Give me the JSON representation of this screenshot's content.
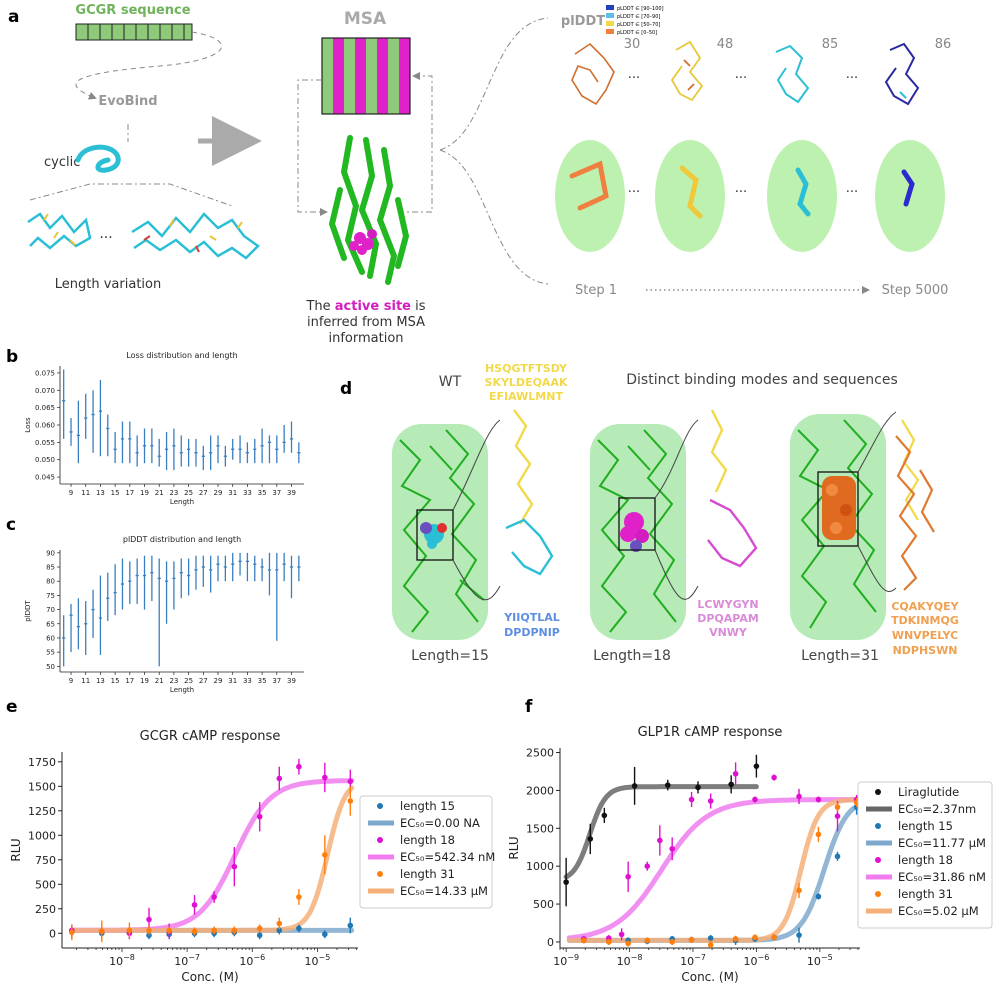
{
  "colors": {
    "gcgr_green": "#7fbf66",
    "msa_magenta": "#e020c8",
    "protein_green": "#2ecc2e",
    "cyan": "#2bbfd6",
    "yellow": "#f2d94a",
    "orange": "#f0803c",
    "pink": "#e62bd6",
    "blue_scatter": "#3a7fbf",
    "gray": "#9a9a9a"
  },
  "panel_a": {
    "label": "a",
    "gcgr_sequence": "GCGR sequence",
    "evobind": "EvoBind",
    "cyclic": "cyclic",
    "length_variation": "Length variation",
    "ellipsis": "...",
    "msa_title": "MSA",
    "active_site_pre": "The ",
    "active_site_highlight": "active site",
    "active_site_post": " is",
    "inferred_line1": "inferred from MSA",
    "inferred_line2": "information",
    "plddt_title": "plDDT",
    "plddt_legend": [
      "pLDDT ∈ [90–100]",
      "pLDDT ∈ [70–90]",
      "pLDDT ∈ [50–70]",
      "pLDDT ∈ [0–50]"
    ],
    "plddt_legend_colors": [
      "#1f3fbf",
      "#5bc0e8",
      "#f2d94a",
      "#f0803c"
    ],
    "plddt_values": [
      "30",
      "48",
      "85",
      "86"
    ],
    "step_start": "Step 1",
    "step_end": "Step 5000"
  },
  "panel_d": {
    "label": "d",
    "wt": "WT",
    "title": "Distinct binding modes and sequences",
    "wt_seq": [
      "HSQGTFTSDY",
      "SKYLDEQAAK",
      "EFIAWLMNT"
    ],
    "seq15": [
      "YIIQTLAL",
      "DPDPNIP"
    ],
    "seq18": [
      "LCWYGYN",
      "DPQAPAM",
      "VNWY"
    ],
    "seq31": [
      "CQAKYQEY",
      "TDKINMQG",
      "WNVPELYC",
      "NDPHSWN"
    ],
    "len15": "Length=15",
    "len18": "Length=18",
    "len31": "Length=31"
  },
  "chart_data": [
    {
      "panel": "b",
      "type": "errorbar",
      "title": "Loss distribution and length",
      "xlabel": "Length",
      "ylabel": "Loss",
      "ylim": [
        0.043,
        0.077
      ],
      "xlim": [
        7.5,
        40.7
      ],
      "yticks": [
        "0.045",
        "0.050",
        "0.055",
        "0.060",
        "0.065",
        "0.070",
        "0.075"
      ],
      "xticks": [
        "9",
        "11",
        "13",
        "15",
        "17",
        "19",
        "21",
        "23",
        "25",
        "27",
        "29",
        "31",
        "33",
        "35",
        "37",
        "39"
      ],
      "x": [
        8,
        9,
        10,
        11,
        12,
        13,
        14,
        15,
        16,
        17,
        18,
        19,
        20,
        21,
        22,
        23,
        24,
        25,
        26,
        27,
        28,
        29,
        30,
        31,
        32,
        33,
        34,
        35,
        36,
        37,
        38,
        39,
        40
      ],
      "mean": [
        0.067,
        0.058,
        0.057,
        0.062,
        0.063,
        0.064,
        0.059,
        0.053,
        0.056,
        0.056,
        0.052,
        0.054,
        0.054,
        0.051,
        0.053,
        0.054,
        0.052,
        0.053,
        0.052,
        0.051,
        0.052,
        0.054,
        0.051,
        0.053,
        0.053,
        0.052,
        0.053,
        0.054,
        0.055,
        0.053,
        0.055,
        0.056,
        0.052
      ],
      "low": [
        0.056,
        0.054,
        0.049,
        0.056,
        0.052,
        0.051,
        0.051,
        0.049,
        0.049,
        0.049,
        0.048,
        0.049,
        0.049,
        0.048,
        0.047,
        0.047,
        0.048,
        0.048,
        0.048,
        0.047,
        0.047,
        0.049,
        0.048,
        0.05,
        0.049,
        0.049,
        0.049,
        0.049,
        0.049,
        0.049,
        0.052,
        0.052,
        0.049
      ],
      "high": [
        0.076,
        0.062,
        0.067,
        0.069,
        0.07,
        0.073,
        0.063,
        0.058,
        0.061,
        0.061,
        0.057,
        0.059,
        0.059,
        0.056,
        0.058,
        0.059,
        0.057,
        0.056,
        0.056,
        0.054,
        0.057,
        0.057,
        0.054,
        0.056,
        0.057,
        0.055,
        0.056,
        0.059,
        0.057,
        0.057,
        0.06,
        0.061,
        0.055
      ]
    },
    {
      "panel": "c",
      "type": "errorbar",
      "title": "plDDT distribution and length",
      "xlabel": "Length",
      "ylabel": "plDDT",
      "ylim": [
        48,
        91
      ],
      "xlim": [
        7.5,
        40.7
      ],
      "yticks": [
        "50",
        "55",
        "60",
        "65",
        "70",
        "75",
        "80",
        "85",
        "90"
      ],
      "xticks": [
        "9",
        "11",
        "13",
        "15",
        "17",
        "19",
        "21",
        "23",
        "25",
        "27",
        "29",
        "31",
        "33",
        "35",
        "37",
        "39"
      ],
      "x": [
        8,
        9,
        10,
        11,
        12,
        13,
        14,
        15,
        16,
        17,
        18,
        19,
        20,
        21,
        22,
        23,
        24,
        25,
        26,
        27,
        28,
        29,
        30,
        31,
        32,
        33,
        34,
        35,
        36,
        37,
        38,
        39,
        40
      ],
      "mean": [
        60,
        68,
        64,
        65,
        70,
        67,
        74,
        76,
        79,
        80,
        82,
        82,
        83,
        81,
        80,
        81,
        83,
        82,
        84,
        85,
        84,
        86,
        85,
        86,
        87,
        87,
        86,
        85,
        84,
        84,
        86,
        85,
        85
      ],
      "low": [
        50,
        55,
        56,
        54,
        60,
        54,
        66,
        68,
        70,
        72,
        72,
        70,
        73,
        50,
        65,
        70,
        74,
        75,
        77,
        78,
        76,
        80,
        80,
        80,
        82,
        80,
        80,
        80,
        75,
        59,
        80,
        74,
        80
      ],
      "high": [
        68,
        72,
        74,
        73,
        77,
        82,
        83,
        86,
        88,
        87,
        88,
        89,
        89,
        88,
        87,
        87,
        88,
        88,
        89,
        89,
        89,
        89,
        89,
        90,
        90,
        90,
        89,
        88,
        90,
        90,
        90,
        89,
        89
      ]
    },
    {
      "panel": "e",
      "type": "dose_response",
      "title": "GCGR cAMP response",
      "xlabel": "Conc. (M)",
      "ylabel": "RLU",
      "xscale": "log",
      "xlim": [
        1.2e-09,
        4.2e-05
      ],
      "ylim": [
        -150,
        1850
      ],
      "yticks": [
        0,
        250,
        500,
        750,
        1000,
        1250,
        1500,
        1750
      ],
      "xticks_exp": [
        -8,
        -7,
        -6,
        -5
      ],
      "series": [
        {
          "name": "length 15",
          "fit_label": "EC₅₀=0.00 NA",
          "color": "#1f77b4",
          "fit_color": "#7fa9cc",
          "fit": {
            "bottom": 30,
            "top": 30,
            "ec50": 1e-06,
            "hill": 1
          },
          "x": [
            1.7e-09,
            4.9e-09,
            1.3e-08,
            2.6e-08,
            5.3e-08,
            1.3e-07,
            2.6e-07,
            5.3e-07,
            1.3e-06,
            2.6e-06,
            5.2e-06,
            1.3e-05,
            3.2e-05
          ],
          "y": [
            20,
            0,
            10,
            -20,
            -10,
            0,
            0,
            10,
            -20,
            30,
            50,
            -10,
            80
          ],
          "err": [
            70,
            60,
            50,
            40,
            40,
            40,
            40,
            40,
            40,
            40,
            40,
            40,
            80
          ]
        },
        {
          "name": "length 18",
          "fit_label": "EC₅₀=542.34 nM",
          "color": "#e010d0",
          "fit_color": "#f07cf0",
          "fit": {
            "bottom": 30,
            "top": 1560,
            "ec50": 5.4234e-07,
            "hill": 1.6
          },
          "x": [
            1.7e-09,
            4.9e-09,
            1.3e-08,
            2.6e-08,
            5.3e-08,
            1.3e-07,
            2.6e-07,
            5.3e-07,
            1.3e-06,
            2.6e-06,
            5.2e-06,
            1.3e-05,
            3.2e-05
          ],
          "y": [
            30,
            20,
            0,
            140,
            20,
            290,
            370,
            680,
            1190,
            1580,
            1700,
            1590,
            1550
          ],
          "err": [
            60,
            50,
            60,
            120,
            80,
            100,
            60,
            200,
            150,
            120,
            80,
            150,
            120
          ]
        },
        {
          "name": "length 31",
          "fit_label": "EC₅₀=14.33 μM",
          "color": "#ff7f0e",
          "fit_color": "#f5b07a",
          "fit": {
            "bottom": 30,
            "top": 1580,
            "ec50": 1.433e-05,
            "hill": 3.2
          },
          "x": [
            1.7e-09,
            4.9e-09,
            1.3e-08,
            2.6e-08,
            5.3e-08,
            1.3e-07,
            2.6e-07,
            5.3e-07,
            1.3e-06,
            2.6e-06,
            5.2e-06,
            1.3e-05,
            3.2e-05
          ],
          "y": [
            10,
            20,
            30,
            30,
            30,
            20,
            30,
            30,
            50,
            100,
            370,
            800,
            1350
          ],
          "err": [
            80,
            110,
            80,
            50,
            40,
            40,
            40,
            40,
            40,
            60,
            80,
            200,
            150
          ]
        }
      ]
    },
    {
      "panel": "f",
      "type": "dose_response",
      "title": "GLP1R cAMP response",
      "xlabel": "Conc. (M)",
      "ylabel": "RLU",
      "xscale": "log",
      "xlim": [
        8e-10,
        4.3e-05
      ],
      "ylim": [
        -80,
        2560
      ],
      "yticks": [
        0,
        500,
        1000,
        1500,
        2000,
        2500
      ],
      "xticks_exp": [
        -9,
        -8,
        -7,
        -6,
        -5
      ],
      "series": [
        {
          "name": "Liraglutide",
          "fit_label": "EC₅₀=2.37nm",
          "color": "#111111",
          "fit_color": "#666666",
          "fit": {
            "bottom": 800,
            "top": 2050,
            "ec50": 2.37e-09,
            "hill": 3.5,
            "xmin": 1e-09,
            "xmax": 1e-06
          },
          "x": [
            1e-09,
            2.4e-09,
            4e-09,
            1.2e-08,
            4e-08,
            1.2e-07,
            4e-07,
            1e-06
          ],
          "y": [
            790,
            1360,
            1670,
            2060,
            2070,
            2040,
            2080,
            2320
          ],
          "err": [
            320,
            200,
            100,
            250,
            70,
            80,
            120,
            150
          ]
        },
        {
          "name": "length 15",
          "fit_label": "EC₅₀=11.77 μM",
          "color": "#1f77b4",
          "fit_color": "#7fa9cc",
          "fit": {
            "bottom": 20,
            "top": 1900,
            "ec50": 1.177e-05,
            "hill": 2.4
          },
          "x": [
            1.9e-09,
            4.7e-09,
            9.5e-09,
            1.9e-08,
            4.7e-08,
            9.5e-08,
            1.9e-07,
            4.7e-07,
            9.5e-07,
            1.9e-06,
            4.7e-06,
            9.5e-06,
            1.9e-05,
            3.8e-05
          ],
          "y": [
            20,
            10,
            20,
            10,
            40,
            30,
            50,
            20,
            40,
            60,
            90,
            600,
            1130,
            1780
          ],
          "err": [
            40,
            40,
            40,
            40,
            40,
            40,
            40,
            60,
            40,
            40,
            100,
            40,
            60,
            100
          ]
        },
        {
          "name": "length 18",
          "fit_label": "EC₅₀=31.86 nM",
          "color": "#e010d0",
          "fit_color": "#f07cf0",
          "fit": {
            "bottom": 20,
            "top": 1880,
            "ec50": 3.186e-08,
            "hill": 1.2
          },
          "x": [
            1.9e-09,
            4.7e-09,
            7.5e-09,
            9.5e-09,
            1.9e-08,
            3e-08,
            4.7e-08,
            9.5e-08,
            1.9e-07,
            4.7e-07,
            9.5e-07,
            1.9e-06,
            4.7e-06,
            9.5e-06,
            1.9e-05,
            3.8e-05
          ],
          "y": [
            40,
            50,
            100,
            860,
            1000,
            1340,
            1230,
            1880,
            1860,
            2220,
            1880,
            2170,
            1920,
            1880,
            1660,
            1880
          ],
          "err": [
            40,
            40,
            80,
            200,
            60,
            200,
            150,
            100,
            100,
            150,
            40,
            40,
            100,
            40,
            200,
            60
          ]
        },
        {
          "name": "length 31",
          "fit_label": "EC₅₀=5.02 μM",
          "color": "#ff7f0e",
          "fit_color": "#f5b07a",
          "fit": {
            "bottom": 20,
            "top": 1880,
            "ec50": 5.02e-06,
            "hill": 3.2
          },
          "x": [
            1.9e-09,
            4.7e-09,
            9.5e-09,
            1.9e-08,
            4.7e-08,
            9.5e-08,
            1.9e-07,
            4.7e-07,
            9.5e-07,
            1.9e-06,
            4.7e-06,
            9.5e-06,
            1.9e-05,
            3.8e-05
          ],
          "y": [
            20,
            0,
            -20,
            20,
            0,
            30,
            -40,
            40,
            60,
            60,
            680,
            1420,
            1780,
            1840
          ],
          "err": [
            40,
            40,
            40,
            40,
            40,
            40,
            60,
            40,
            40,
            40,
            100,
            100,
            60,
            60
          ]
        }
      ]
    }
  ]
}
